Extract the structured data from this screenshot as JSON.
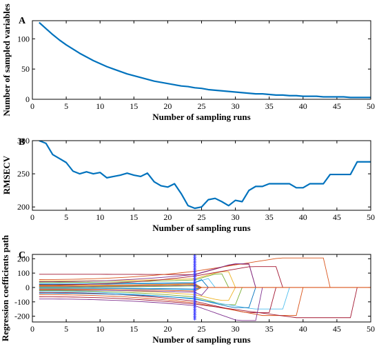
{
  "chart_data": [
    {
      "type": "line",
      "panel_label": "A",
      "xlabel": "Number of sampling runs",
      "ylabel": "Number of sampled variables",
      "xlim": [
        0,
        50
      ],
      "ylim": [
        0,
        130
      ],
      "xticks": [
        0,
        5,
        10,
        15,
        20,
        25,
        30,
        35,
        40,
        45,
        50
      ],
      "yticks": [
        0,
        50,
        100
      ],
      "color": "#0072BD",
      "x": [
        1,
        2,
        3,
        4,
        5,
        6,
        7,
        8,
        9,
        10,
        11,
        12,
        13,
        14,
        15,
        16,
        17,
        18,
        19,
        20,
        21,
        22,
        23,
        24,
        25,
        26,
        27,
        28,
        29,
        30,
        31,
        32,
        33,
        34,
        35,
        36,
        37,
        38,
        39,
        40,
        41,
        42,
        43,
        44,
        45,
        46,
        47,
        48,
        49,
        50
      ],
      "y": [
        127,
        117,
        107,
        98,
        90,
        83,
        76,
        70,
        64,
        59,
        54,
        50,
        46,
        42,
        39,
        36,
        33,
        30,
        28,
        26,
        24,
        22,
        21,
        19,
        18,
        16,
        15,
        14,
        13,
        12,
        11,
        10,
        9,
        9,
        8,
        7,
        7,
        6,
        6,
        5,
        5,
        5,
        4,
        4,
        4,
        4,
        3,
        3,
        3,
        3
      ]
    },
    {
      "type": "line",
      "panel_label": "B",
      "xlabel": "Number of sampling runs",
      "ylabel": "RMSECV",
      "xlim": [
        0,
        50
      ],
      "ylim": [
        195,
        300
      ],
      "xticks": [
        0,
        5,
        10,
        15,
        20,
        25,
        30,
        35,
        40,
        45,
        50
      ],
      "yticks": [
        200,
        250,
        300
      ],
      "color": "#0072BD",
      "x": [
        1,
        2,
        3,
        4,
        5,
        6,
        7,
        8,
        9,
        10,
        11,
        12,
        13,
        14,
        15,
        16,
        17,
        18,
        19,
        20,
        21,
        22,
        23,
        24,
        25,
        26,
        27,
        28,
        29,
        30,
        31,
        32,
        33,
        34,
        35,
        36,
        37,
        38,
        39,
        40,
        41,
        42,
        43,
        44,
        45,
        46,
        47,
        48,
        49,
        50
      ],
      "y": [
        300,
        296,
        279,
        273,
        267,
        254,
        250,
        253,
        250,
        252,
        244,
        246,
        248,
        251,
        248,
        246,
        251,
        238,
        232,
        230,
        235,
        220,
        202,
        198,
        200,
        211,
        213,
        208,
        202,
        210,
        208,
        225,
        231,
        231,
        235,
        235,
        235,
        235,
        229,
        229,
        235,
        235,
        235,
        249,
        249,
        249,
        249,
        268,
        268,
        268
      ]
    },
    {
      "type": "line",
      "panel_label": "C",
      "xlabel": "Number of sampling runs",
      "ylabel": "Regression coefficients path",
      "xlim": [
        0,
        50
      ],
      "ylim": [
        -240,
        230
      ],
      "xticks": [
        0,
        5,
        10,
        15,
        20,
        25,
        30,
        35,
        40,
        45,
        50
      ],
      "yticks": [
        -200,
        -100,
        0,
        100,
        200
      ],
      "marker_x": 24,
      "marker_color": "#2222ff",
      "series": [
        {
          "color": "#A2142F",
          "start": 92,
          "end": 162,
          "drop": 33
        },
        {
          "color": "#D95319",
          "start": 55,
          "end": 205,
          "drop": 44
        },
        {
          "color": "#EDB120",
          "start": 45,
          "end": 110,
          "drop": 30
        },
        {
          "color": "#7E2F8E",
          "start": 40,
          "end": 165,
          "drop": 33
        },
        {
          "color": "#77AC30",
          "start": 35,
          "end": 95,
          "drop": 29
        },
        {
          "color": "#4DBEEE",
          "start": 28,
          "end": 62,
          "drop": 27
        },
        {
          "color": "#0072BD",
          "start": 22,
          "end": 60,
          "drop": 26
        },
        {
          "color": "#A2142F",
          "start": 18,
          "end": 145,
          "drop": 37
        },
        {
          "color": "#D95319",
          "start": 14,
          "end": 48,
          "drop": 25
        },
        {
          "color": "#EDB120",
          "start": 10,
          "end": 40,
          "drop": 25
        },
        {
          "color": "#7E2F8E",
          "start": 6,
          "end": 30,
          "drop": 24
        },
        {
          "color": "#77AC30",
          "start": 3,
          "end": 20,
          "drop": 23
        },
        {
          "color": "#0072BD",
          "start": -3,
          "end": -20,
          "drop": 23
        },
        {
          "color": "#4DBEEE",
          "start": -6,
          "end": -30,
          "drop": 24
        },
        {
          "color": "#D95319",
          "start": -10,
          "end": -45,
          "drop": 25
        },
        {
          "color": "#EDB120",
          "start": -14,
          "end": -90,
          "drop": 30
        },
        {
          "color": "#7E2F8E",
          "start": -18,
          "end": -60,
          "drop": 26
        },
        {
          "color": "#77AC30",
          "start": -22,
          "end": -120,
          "drop": 31
        },
        {
          "color": "#4DBEEE",
          "start": -28,
          "end": -150,
          "drop": 38
        },
        {
          "color": "#A2142F",
          "start": -35,
          "end": -175,
          "drop": 36
        },
        {
          "color": "#0072BD",
          "start": -40,
          "end": -140,
          "drop": 33
        },
        {
          "color": "#D95319",
          "start": -50,
          "end": -195,
          "drop": 40
        },
        {
          "color": "#A2142F",
          "start": -65,
          "end": -210,
          "drop": 48
        },
        {
          "color": "#7E2F8E",
          "start": -80,
          "end": -230,
          "drop": 34
        }
      ]
    }
  ]
}
